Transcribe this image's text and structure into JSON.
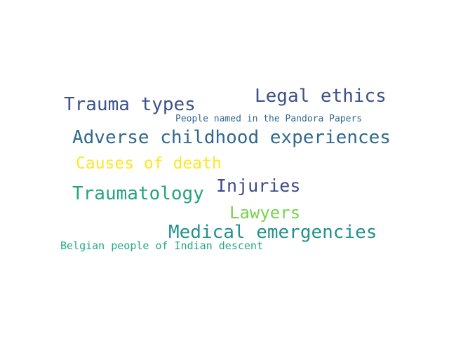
{
  "words": [
    {
      "text": "Trauma types",
      "color": "#3b528b"
    },
    {
      "text": "Legal ethics",
      "color": "#3b528b"
    },
    {
      "text": "People named in the Pandora Papers",
      "color": "#31688e"
    },
    {
      "text": "Adverse childhood experiences",
      "color": "#31688e"
    },
    {
      "text": "Causes of death",
      "color": "#fde725"
    },
    {
      "text": "Traumatology",
      "color": "#26a47d"
    },
    {
      "text": "Injuries",
      "color": "#3e4a89"
    },
    {
      "text": "Lawyers",
      "color": "#7ad151"
    },
    {
      "text": "Medical emergencies",
      "color": "#21918c"
    },
    {
      "text": "Belgian people of Indian descent",
      "color": "#22a884"
    }
  ]
}
